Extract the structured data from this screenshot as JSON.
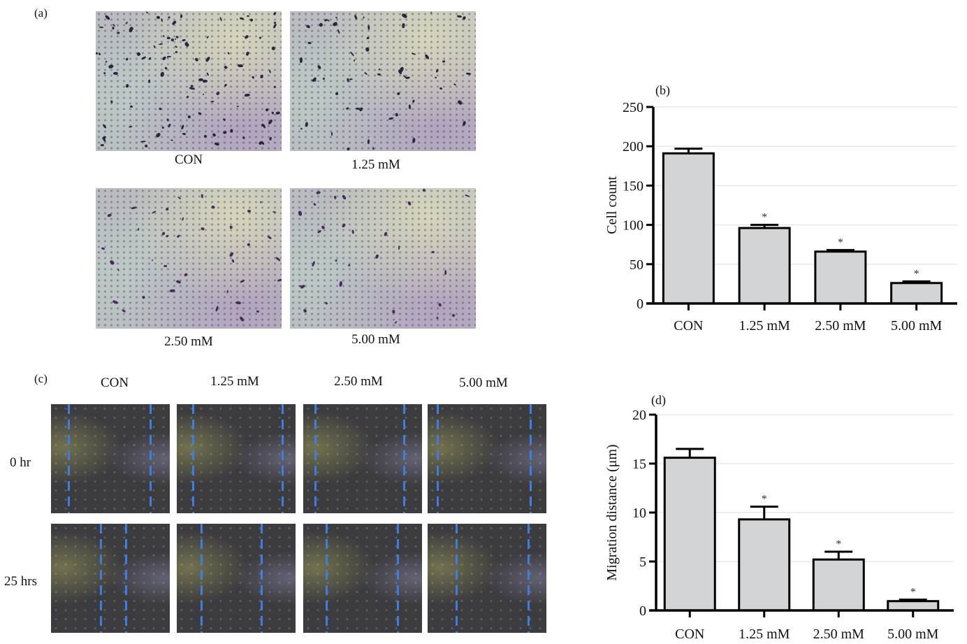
{
  "panels": {
    "a": {
      "label": "(a)",
      "images": [
        {
          "caption": "CON"
        },
        {
          "caption": "1.25 mM"
        },
        {
          "caption": "2.50 mM"
        },
        {
          "caption": "5.00 mM"
        }
      ]
    },
    "b": {
      "label": "(b)"
    },
    "c": {
      "label": "(c)",
      "columns": [
        "CON",
        "1.25 mM",
        "2.50 mM",
        "5.00 mM"
      ],
      "rows": [
        "0 hr",
        "25 hrs"
      ]
    },
    "d": {
      "label": "(d)"
    }
  },
  "colors": {
    "bar_fill": "#d3d4d6",
    "bar_stroke": "#000000",
    "gridline": "#e3e3e3",
    "wound_line": "#3d7ee0"
  },
  "chart_data": [
    {
      "id": "b",
      "type": "bar",
      "title": "(b)",
      "categories": [
        "CON",
        "1.25 mM",
        "2.50 mM",
        "5.00 mM"
      ],
      "values": [
        191,
        96,
        66,
        26
      ],
      "error_upper": [
        197,
        100,
        68,
        28
      ],
      "significance": [
        "",
        "*",
        "*",
        "*"
      ],
      "xlabel": "",
      "ylabel": "Cell count",
      "ylim": [
        0,
        250
      ],
      "yticks": [
        0,
        50,
        100,
        150,
        200,
        250
      ],
      "grid": true
    },
    {
      "id": "d",
      "type": "bar",
      "title": "(d)",
      "categories": [
        "CON",
        "1.25 mM",
        "2.50 mM",
        "5.00 mM"
      ],
      "values": [
        15.6,
        9.3,
        5.2,
        0.95
      ],
      "error_upper": [
        16.5,
        10.6,
        6.0,
        1.1
      ],
      "significance": [
        "",
        "*",
        "*",
        "*"
      ],
      "xlabel": "",
      "ylabel": "Migration distance (μm)",
      "ylim": [
        0,
        20
      ],
      "yticks": [
        0,
        5,
        10,
        15,
        20
      ],
      "grid": true
    }
  ]
}
